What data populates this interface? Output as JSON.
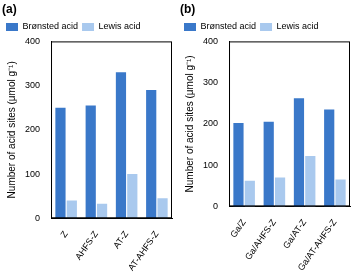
{
  "chart_data": [
    {
      "type": "bar",
      "title": "(a)",
      "categories": [
        "Z",
        "AHFS-Z",
        "AT-Z",
        "AT-AHFS-Z"
      ],
      "series": [
        {
          "name": "Brønsted acid",
          "color": "#3a78c9",
          "values": [
            250,
            255,
            330,
            290
          ]
        },
        {
          "name": "Lewis acid",
          "color": "#a9c9ee",
          "values": [
            40,
            33,
            100,
            45
          ]
        }
      ],
      "y_label": "Number of acid sites (μmol g⁻¹)",
      "ylim": [
        0,
        400
      ],
      "yticks": [
        0,
        100,
        200,
        300,
        400
      ],
      "grid": false,
      "legend": "top"
    },
    {
      "type": "bar",
      "title": "(b)",
      "categories": [
        "Ga/Z",
        "Ga/AHFS-Z",
        "Ga/AT-Z",
        "Ga/AT-AHFS-Z"
      ],
      "series": [
        {
          "name": "Brønsted acid",
          "color": "#3a78c9",
          "values": [
            202,
            205,
            262,
            235
          ]
        },
        {
          "name": "Lewis acid",
          "color": "#a9c9ee",
          "values": [
            62,
            70,
            122,
            65
          ]
        }
      ],
      "y_label": "Number of acid sites (μmol g⁻¹)",
      "ylim": [
        0,
        400
      ],
      "yticks": [
        0,
        100,
        200,
        300,
        400
      ],
      "grid": false,
      "legend": "top"
    }
  ]
}
